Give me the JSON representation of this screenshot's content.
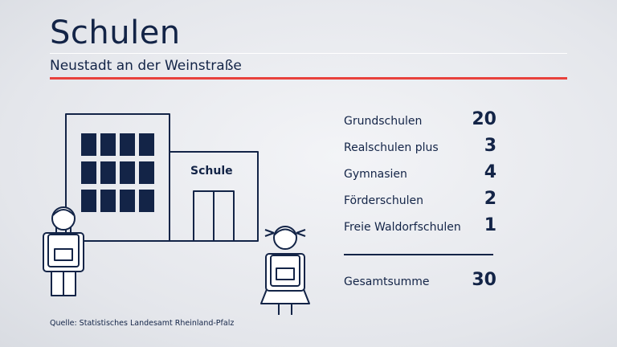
{
  "header": {
    "title": "Schulen",
    "subtitle": "Neustadt an der Weinstraße"
  },
  "illustration": {
    "building_label": "Schule"
  },
  "stats": {
    "items": [
      {
        "label": "Grundschulen",
        "value": "20"
      },
      {
        "label": "Realschulen plus",
        "value": "3"
      },
      {
        "label": "Gymnasien",
        "value": "4"
      },
      {
        "label": "Förderschulen",
        "value": "2"
      },
      {
        "label": "Freie Waldorfschulen",
        "value": "1"
      }
    ],
    "total": {
      "label": "Gesamtsumme",
      "value": "30"
    }
  },
  "footer": {
    "source": "Quelle: Statistisches Landesamt Rheinland-Pfalz"
  },
  "colors": {
    "ink": "#132447",
    "accent": "#e8413c"
  }
}
